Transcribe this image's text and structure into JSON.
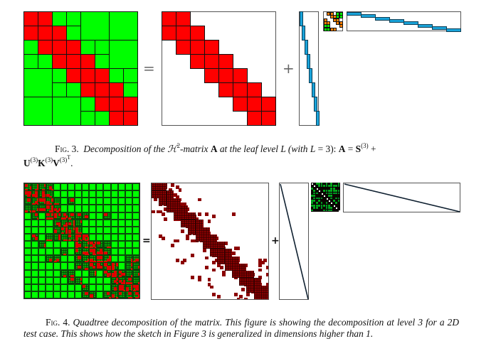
{
  "colors": {
    "near_field": "#ff0000",
    "far_field": "#00ff00",
    "basis": "#1aa3d9",
    "transfer": "#ff8000",
    "dark_red": "#8b0000",
    "grid_line": "#111111",
    "frame": "#555555"
  },
  "figure3": {
    "operators": {
      "equals": "=",
      "plus": "+"
    },
    "matrix_A": {
      "units": 8,
      "blocks": [
        [
          0,
          0,
          1,
          "R"
        ],
        [
          0,
          1,
          1,
          "R"
        ],
        [
          0,
          2,
          1,
          "G"
        ],
        [
          0,
          3,
          1,
          "G"
        ],
        [
          0,
          4,
          2,
          "G"
        ],
        [
          0,
          6,
          2,
          "G"
        ],
        [
          1,
          0,
          1,
          "R"
        ],
        [
          1,
          1,
          1,
          "R"
        ],
        [
          1,
          2,
          1,
          "R"
        ],
        [
          1,
          3,
          1,
          "G"
        ],
        [
          2,
          0,
          1,
          "G"
        ],
        [
          2,
          1,
          1,
          "R"
        ],
        [
          2,
          2,
          1,
          "R"
        ],
        [
          2,
          3,
          1,
          "R"
        ],
        [
          2,
          4,
          1,
          "G"
        ],
        [
          2,
          5,
          1,
          "G"
        ],
        [
          2,
          6,
          2,
          "G"
        ],
        [
          3,
          0,
          1,
          "G"
        ],
        [
          3,
          1,
          1,
          "G"
        ],
        [
          3,
          2,
          1,
          "R"
        ],
        [
          3,
          3,
          1,
          "R"
        ],
        [
          3,
          4,
          1,
          "R"
        ],
        [
          3,
          5,
          1,
          "G"
        ],
        [
          4,
          0,
          2,
          "G"
        ],
        [
          4,
          2,
          1,
          "G"
        ],
        [
          4,
          3,
          1,
          "R"
        ],
        [
          4,
          4,
          1,
          "R"
        ],
        [
          4,
          5,
          1,
          "R"
        ],
        [
          4,
          6,
          1,
          "G"
        ],
        [
          4,
          7,
          1,
          "G"
        ],
        [
          5,
          2,
          1,
          "G"
        ],
        [
          5,
          3,
          1,
          "G"
        ],
        [
          5,
          4,
          1,
          "R"
        ],
        [
          5,
          5,
          1,
          "R"
        ],
        [
          5,
          6,
          1,
          "R"
        ],
        [
          5,
          7,
          1,
          "G"
        ],
        [
          6,
          0,
          2,
          "G"
        ],
        [
          6,
          2,
          2,
          "G"
        ],
        [
          6,
          4,
          1,
          "G"
        ],
        [
          6,
          5,
          1,
          "R"
        ],
        [
          6,
          6,
          1,
          "R"
        ],
        [
          6,
          7,
          1,
          "R"
        ],
        [
          7,
          4,
          1,
          "G"
        ],
        [
          7,
          5,
          1,
          "G"
        ],
        [
          7,
          6,
          1,
          "R"
        ],
        [
          7,
          7,
          1,
          "R"
        ]
      ]
    },
    "caption": {
      "label": "Fig. 3.",
      "text_1": "Decomposition of the ",
      "calH": "ℋ",
      "sup2": "2",
      "text_2": "-matrix ",
      "A": "A",
      "text_3": " at the leaf level ",
      "L": "L",
      "text_4": " (with ",
      "L2": "L",
      "text_5": " = 3):  ",
      "A2": "A",
      "eq": " = ",
      "S": "S",
      "sup3": "(3)",
      "plus": " +",
      "U": "U",
      "K": "K",
      "V": "V",
      "T": "T",
      "end": "."
    }
  },
  "figure4": {
    "operators": {
      "equals": "=",
      "plus": "+"
    },
    "grid_units": 16,
    "caption": {
      "label": "Fig. 4.",
      "text": "Quadtree decomposition of the matrix. This figure is showing the decomposition at level 3 for a 2D test case. This shows how the sketch in Figure 3 is generalized in dimensions higher than 1."
    }
  }
}
